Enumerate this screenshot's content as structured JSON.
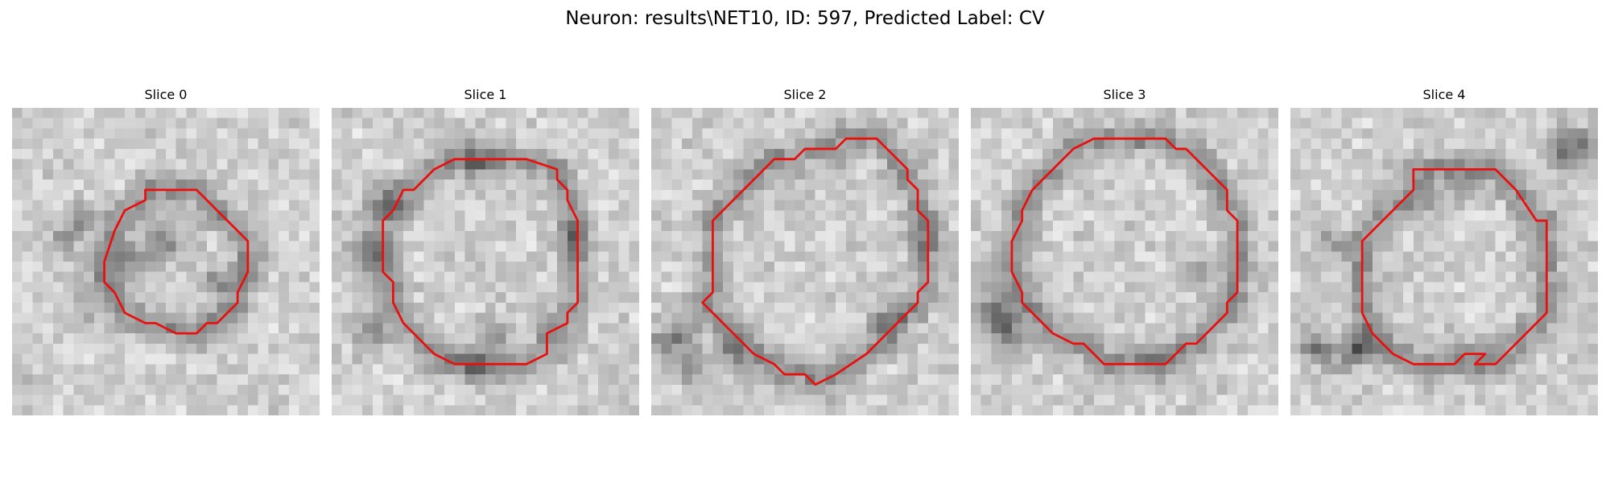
{
  "figure": {
    "title": "Neuron: results\\NET10, ID: 597, Predicted Label: CV"
  },
  "style": {
    "contour_color": "#e8110f",
    "image_colormap": "grayscale (dark = low intensity)"
  },
  "image_grid": {
    "rows": 30,
    "cols": 30
  },
  "panels": [
    {
      "title": "Slice 0",
      "description": "small dark cell body with an irregular contour",
      "contour_grid": [
        [
          13,
          8
        ],
        [
          15,
          8
        ],
        [
          18,
          8
        ],
        [
          20,
          10
        ],
        [
          22,
          12
        ],
        [
          23,
          13
        ],
        [
          23,
          16
        ],
        [
          22,
          18
        ],
        [
          22,
          19
        ],
        [
          20,
          21
        ],
        [
          19,
          21
        ],
        [
          18,
          22
        ],
        [
          16,
          22
        ],
        [
          14,
          21
        ],
        [
          13,
          21
        ],
        [
          11,
          20
        ],
        [
          10,
          18
        ],
        [
          9,
          17
        ],
        [
          9,
          15
        ],
        [
          10,
          12
        ],
        [
          11,
          10
        ],
        [
          13,
          9
        ]
      ],
      "dark_spots": [
        [
          5,
          13,
          24
        ],
        [
          7,
          11,
          22
        ],
        [
          12,
          15,
          34
        ],
        [
          15,
          13,
          38
        ],
        [
          20,
          17,
          22
        ],
        [
          8,
          19,
          18
        ],
        [
          2,
          27,
          8
        ],
        [
          1,
          29,
          10
        ]
      ]
    },
    {
      "title": "Slice 1",
      "description": "dark ring cell outline, contour following the membrane",
      "contour_grid": [
        [
          12,
          5
        ],
        [
          19,
          5
        ],
        [
          22,
          6
        ],
        [
          22,
          7
        ],
        [
          23,
          8
        ],
        [
          23,
          9
        ],
        [
          24,
          11
        ],
        [
          24,
          19
        ],
        [
          23,
          20
        ],
        [
          23,
          21
        ],
        [
          21,
          22
        ],
        [
          21,
          24
        ],
        [
          19,
          25
        ],
        [
          12,
          25
        ],
        [
          10,
          24
        ],
        [
          9,
          23
        ],
        [
          8,
          22
        ],
        [
          7,
          21
        ],
        [
          6,
          19
        ],
        [
          6,
          17
        ],
        [
          5,
          16
        ],
        [
          5,
          11
        ],
        [
          6,
          10
        ],
        [
          7,
          8
        ],
        [
          8,
          8
        ],
        [
          10,
          6
        ]
      ],
      "dark_spots": [
        [
          5,
          9,
          26
        ],
        [
          14,
          5,
          24
        ],
        [
          23,
          13,
          26
        ],
        [
          14,
          25,
          30
        ],
        [
          4,
          22,
          30
        ],
        [
          16,
          22,
          28
        ],
        [
          3,
          14,
          30
        ]
      ]
    },
    {
      "title": "Slice 2",
      "description": "large cell with contour spanning most of the frame",
      "contour_grid": [
        [
          19,
          3
        ],
        [
          22,
          3
        ],
        [
          23,
          4
        ],
        [
          25,
          6
        ],
        [
          25,
          7
        ],
        [
          26,
          8
        ],
        [
          26,
          10
        ],
        [
          27,
          11
        ],
        [
          27,
          17
        ],
        [
          26,
          18
        ],
        [
          26,
          19
        ],
        [
          25,
          20
        ],
        [
          24,
          21
        ],
        [
          23,
          22
        ],
        [
          21,
          24
        ],
        [
          18,
          26
        ],
        [
          16,
          27
        ],
        [
          15,
          26
        ],
        [
          13,
          26
        ],
        [
          12,
          25
        ],
        [
          10,
          24
        ],
        [
          8,
          22
        ],
        [
          5,
          19
        ],
        [
          6,
          18
        ],
        [
          6,
          11
        ],
        [
          7,
          10
        ],
        [
          9,
          8
        ],
        [
          11,
          6
        ],
        [
          12,
          5
        ],
        [
          14,
          5
        ],
        [
          15,
          4
        ],
        [
          18,
          4
        ]
      ],
      "dark_spots": [
        [
          3,
          22,
          26
        ],
        [
          4,
          25,
          30
        ],
        [
          1,
          23,
          28
        ],
        [
          8,
          24,
          24
        ],
        [
          23,
          21,
          20
        ],
        [
          26,
          13,
          16
        ]
      ]
    },
    {
      "title": "Slice 3",
      "description": "large cell with contour spanning most of the frame",
      "contour_grid": [
        [
          15,
          3
        ],
        [
          19,
          3
        ],
        [
          20,
          4
        ],
        [
          21,
          4
        ],
        [
          22,
          5
        ],
        [
          23,
          6
        ],
        [
          25,
          8
        ],
        [
          25,
          10
        ],
        [
          26,
          11
        ],
        [
          26,
          18
        ],
        [
          25,
          19
        ],
        [
          25,
          20
        ],
        [
          24,
          21
        ],
        [
          22,
          23
        ],
        [
          21,
          23
        ],
        [
          19,
          25
        ],
        [
          13,
          25
        ],
        [
          11,
          23
        ],
        [
          10,
          23
        ],
        [
          8,
          22
        ],
        [
          6,
          20
        ],
        [
          5,
          19
        ],
        [
          5,
          18
        ],
        [
          4,
          16
        ],
        [
          4,
          13
        ],
        [
          5,
          11
        ],
        [
          5,
          10
        ],
        [
          6,
          8
        ],
        [
          7,
          7
        ],
        [
          8,
          6
        ],
        [
          9,
          5
        ],
        [
          10,
          4
        ],
        [
          12,
          3
        ]
      ],
      "dark_spots": [
        [
          2,
          20,
          30
        ],
        [
          3,
          21,
          32
        ],
        [
          4,
          23,
          28
        ],
        [
          2,
          17,
          22
        ],
        [
          22,
          16,
          20
        ],
        [
          18,
          24,
          18
        ]
      ]
    },
    {
      "title": "Slice 4",
      "description": "cell with contour offset toward the right",
      "contour_grid": [
        [
          12,
          6
        ],
        [
          20,
          6
        ],
        [
          22,
          8
        ],
        [
          24,
          11
        ],
        [
          25,
          11
        ],
        [
          25,
          20
        ],
        [
          24,
          21
        ],
        [
          23,
          22
        ],
        [
          20,
          25
        ],
        [
          18,
          25
        ],
        [
          19,
          24
        ],
        [
          17,
          24
        ],
        [
          16,
          25
        ],
        [
          12,
          25
        ],
        [
          10,
          24
        ],
        [
          9,
          23
        ],
        [
          8,
          22
        ],
        [
          7,
          20
        ],
        [
          7,
          13
        ],
        [
          8,
          12
        ],
        [
          10,
          10
        ],
        [
          12,
          8
        ]
      ],
      "dark_spots": [
        [
          7,
          23,
          30
        ],
        [
          6,
          24,
          30
        ],
        [
          2,
          23,
          24
        ],
        [
          3,
          24,
          24
        ],
        [
          27,
          3,
          30
        ],
        [
          27,
          5,
          26
        ],
        [
          29,
          4,
          26
        ],
        [
          4,
          13,
          18
        ],
        [
          17,
          8,
          18
        ],
        [
          14,
          9,
          20
        ]
      ]
    }
  ]
}
